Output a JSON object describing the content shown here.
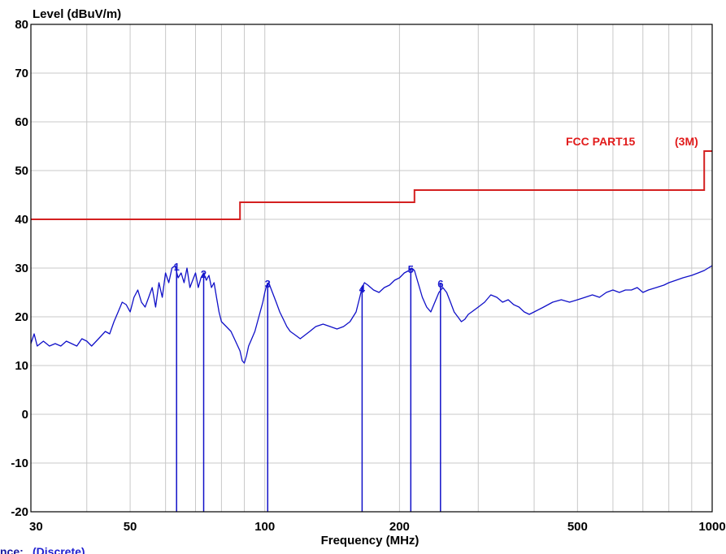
{
  "chart_data": {
    "type": "line",
    "xlabel": "Frequency (MHz)",
    "ylabel": "Level (dBuV/m)",
    "x_scale": "log",
    "xlim": [
      30,
      1000
    ],
    "ylim": [
      -20,
      80
    ],
    "x_ticks": [
      30,
      50,
      100,
      200,
      500,
      1000
    ],
    "y_ticks": [
      -20,
      -10,
      0,
      10,
      20,
      30,
      40,
      50,
      60,
      70,
      80
    ],
    "grid": true,
    "colors": {
      "limit": "#d42020",
      "measurement": "#1010c8",
      "grid": "#c8c8c8",
      "limit_label": "#e11b1b"
    },
    "limit_line": {
      "label_left": "FCC PART15",
      "label_right": "(3M)",
      "points": [
        [
          30,
          40
        ],
        [
          88,
          40
        ],
        [
          88,
          43.5
        ],
        [
          216,
          43.5
        ],
        [
          216,
          46
        ],
        [
          960,
          46
        ],
        [
          960,
          54
        ],
        [
          1000,
          54
        ]
      ]
    },
    "measurement": {
      "points": [
        [
          30,
          14.5
        ],
        [
          30.5,
          16.5
        ],
        [
          31,
          14
        ],
        [
          32,
          15
        ],
        [
          33,
          14
        ],
        [
          34,
          14.5
        ],
        [
          35,
          14
        ],
        [
          36,
          15
        ],
        [
          37,
          14.5
        ],
        [
          38,
          14
        ],
        [
          39,
          15.5
        ],
        [
          40,
          15
        ],
        [
          41,
          14
        ],
        [
          42,
          15
        ],
        [
          43,
          16
        ],
        [
          44,
          17
        ],
        [
          45,
          16.5
        ],
        [
          46,
          19
        ],
        [
          47,
          21
        ],
        [
          48,
          23
        ],
        [
          49,
          22.5
        ],
        [
          50,
          21
        ],
        [
          51,
          24
        ],
        [
          52,
          25.5
        ],
        [
          53,
          23
        ],
        [
          54,
          22
        ],
        [
          55,
          24
        ],
        [
          56,
          26
        ],
        [
          57,
          22
        ],
        [
          58,
          27
        ],
        [
          59,
          24
        ],
        [
          60,
          29
        ],
        [
          61,
          27
        ],
        [
          62,
          30
        ],
        [
          63,
          30.5
        ],
        [
          64,
          28
        ],
        [
          65,
          29
        ],
        [
          66,
          27
        ],
        [
          67,
          30
        ],
        [
          68,
          26
        ],
        [
          69,
          27.5
        ],
        [
          70,
          29
        ],
        [
          71,
          26
        ],
        [
          72,
          28
        ],
        [
          73,
          29
        ],
        [
          74,
          27.5
        ],
        [
          75,
          28.5
        ],
        [
          76,
          26
        ],
        [
          77,
          27
        ],
        [
          78,
          24
        ],
        [
          79,
          21
        ],
        [
          80,
          19
        ],
        [
          82,
          18
        ],
        [
          84,
          17
        ],
        [
          86,
          15
        ],
        [
          88,
          13
        ],
        [
          89,
          11
        ],
        [
          90,
          10.5
        ],
        [
          91,
          12
        ],
        [
          92,
          14
        ],
        [
          93,
          15
        ],
        [
          95,
          17
        ],
        [
          97,
          20
        ],
        [
          99,
          23
        ],
        [
          100,
          25
        ],
        [
          101,
          26.5
        ],
        [
          102,
          27
        ],
        [
          103,
          26
        ],
        [
          104,
          25
        ],
        [
          106,
          23
        ],
        [
          108,
          21
        ],
        [
          110,
          19.5
        ],
        [
          112,
          18
        ],
        [
          114,
          17
        ],
        [
          116,
          16.5
        ],
        [
          118,
          16
        ],
        [
          120,
          15.5
        ],
        [
          122,
          16
        ],
        [
          124,
          16.5
        ],
        [
          126,
          17
        ],
        [
          130,
          18
        ],
        [
          135,
          18.5
        ],
        [
          140,
          18
        ],
        [
          145,
          17.5
        ],
        [
          150,
          18
        ],
        [
          155,
          19
        ],
        [
          160,
          21
        ],
        [
          163,
          24
        ],
        [
          165,
          26
        ],
        [
          167,
          27
        ],
        [
          170,
          26.5
        ],
        [
          175,
          25.5
        ],
        [
          180,
          25
        ],
        [
          185,
          26
        ],
        [
          190,
          26.5
        ],
        [
          195,
          27.5
        ],
        [
          200,
          28
        ],
        [
          205,
          29
        ],
        [
          210,
          29.5
        ],
        [
          213,
          30
        ],
        [
          216,
          29.5
        ],
        [
          220,
          27
        ],
        [
          225,
          24
        ],
        [
          230,
          22
        ],
        [
          235,
          21
        ],
        [
          240,
          23
        ],
        [
          245,
          25
        ],
        [
          250,
          26
        ],
        [
          255,
          25
        ],
        [
          260,
          23
        ],
        [
          265,
          21
        ],
        [
          270,
          20
        ],
        [
          275,
          19
        ],
        [
          280,
          19.5
        ],
        [
          285,
          20.5
        ],
        [
          290,
          21
        ],
        [
          300,
          22
        ],
        [
          310,
          23
        ],
        [
          320,
          24.5
        ],
        [
          330,
          24
        ],
        [
          340,
          23
        ],
        [
          350,
          23.5
        ],
        [
          360,
          22.5
        ],
        [
          370,
          22
        ],
        [
          380,
          21
        ],
        [
          390,
          20.5
        ],
        [
          400,
          21
        ],
        [
          420,
          22
        ],
        [
          440,
          23
        ],
        [
          460,
          23.5
        ],
        [
          480,
          23
        ],
        [
          500,
          23.5
        ],
        [
          520,
          24
        ],
        [
          540,
          24.5
        ],
        [
          560,
          24
        ],
        [
          580,
          25
        ],
        [
          600,
          25.5
        ],
        [
          620,
          25
        ],
        [
          640,
          25.5
        ],
        [
          660,
          25.5
        ],
        [
          680,
          26
        ],
        [
          700,
          25
        ],
        [
          720,
          25.5
        ],
        [
          750,
          26
        ],
        [
          780,
          26.5
        ],
        [
          800,
          27
        ],
        [
          830,
          27.5
        ],
        [
          860,
          28
        ],
        [
          900,
          28.5
        ],
        [
          930,
          29
        ],
        [
          960,
          29.5
        ],
        [
          1000,
          30.5
        ]
      ]
    },
    "markers": [
      {
        "label": "1",
        "freq": 63.5,
        "level": 30.5
      },
      {
        "label": "2",
        "freq": 73,
        "level": 29
      },
      {
        "label": "3",
        "freq": 101.5,
        "level": 27
      },
      {
        "label": "4",
        "freq": 165,
        "level": 26
      },
      {
        "label": "5",
        "freq": 212,
        "level": 30
      },
      {
        "label": "6",
        "freq": 247,
        "level": 27
      }
    ]
  },
  "footer": {
    "prefix": "nce:",
    "value": "(Discrete)"
  }
}
